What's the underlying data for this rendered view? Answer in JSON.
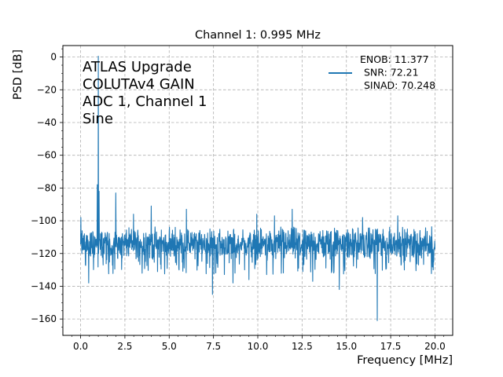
{
  "chart_data": {
    "type": "line",
    "title": "Channel 1: 0.995 MHz",
    "xlabel": "Frequency [MHz]",
    "ylabel": "PSD [dB]",
    "xlim": [
      -1.0,
      21.0
    ],
    "ylim": [
      -170,
      7
    ],
    "xticks": [
      0.0,
      2.5,
      5.0,
      7.5,
      10.0,
      12.5,
      15.0,
      17.5,
      20.0
    ],
    "xtick_labels": [
      "0.0",
      "2.5",
      "5.0",
      "7.5",
      "10.0",
      "12.5",
      "15.0",
      "17.5",
      "20.0"
    ],
    "yticks": [
      0,
      -20,
      -40,
      -60,
      -80,
      -100,
      -120,
      -140,
      -160
    ],
    "ytick_labels": [
      "0",
      "−20",
      "−40",
      "−60",
      "−80",
      "−100",
      "−120",
      "−140",
      "−160"
    ],
    "grid": true,
    "grid_style": "dashed",
    "legend_position": "top-right",
    "legend_lines": [
      "ENOB: 11.377",
      "SNR: 72.21",
      "SINAD: 70.248"
    ],
    "annotation_lines": [
      "ATLAS Upgrade",
      "COLUTAv4 GAIN",
      "ADC 1, Channel 1",
      "Sine"
    ],
    "series": [
      {
        "color": "#1f77b4",
        "noise_floor": {
          "x_start": 0.0,
          "x_end": 20.0,
          "center_db": -114,
          "low_db": -125,
          "high_db": -103
        },
        "spikes": [
          {
            "x": 0.995,
            "y": 0.5
          },
          {
            "x": 0.95,
            "y": -78
          },
          {
            "x": 1.05,
            "y": -82
          },
          {
            "x": 1.99,
            "y": -83
          },
          {
            "x": 2.98,
            "y": -96
          },
          {
            "x": 3.98,
            "y": -91
          },
          {
            "x": 5.97,
            "y": -93
          },
          {
            "x": 9.95,
            "y": -96
          },
          {
            "x": 10.95,
            "y": -97
          },
          {
            "x": 11.94,
            "y": -93
          },
          {
            "x": 15.92,
            "y": -98
          },
          {
            "x": 17.9,
            "y": -97
          },
          {
            "x": 0.02,
            "y": -98
          },
          {
            "x": 0.45,
            "y": -138
          },
          {
            "x": 7.45,
            "y": -145
          },
          {
            "x": 8.6,
            "y": -138
          },
          {
            "x": 9.5,
            "y": -136
          },
          {
            "x": 13.1,
            "y": -137
          },
          {
            "x": 14.6,
            "y": -142
          },
          {
            "x": 16.75,
            "y": -161
          },
          {
            "x": 19.9,
            "y": -130
          }
        ]
      }
    ]
  },
  "colors": {
    "line": "#1f77b4",
    "grid": "#b0b0b0"
  }
}
